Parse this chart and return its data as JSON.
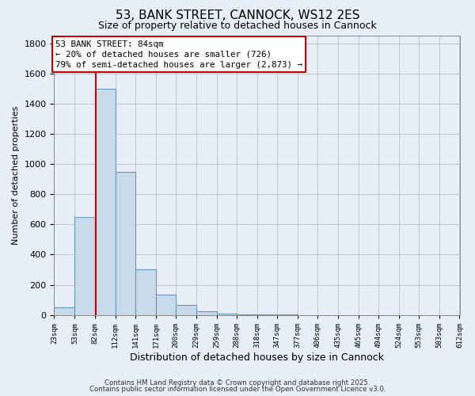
{
  "title": "53, BANK STREET, CANNOCK, WS12 2ES",
  "subtitle": "Size of property relative to detached houses in Cannock",
  "xlabel": "Distribution of detached houses by size in Cannock",
  "ylabel": "Number of detached properties",
  "footer_line1": "Contains HM Land Registry data © Crown copyright and database right 2025.",
  "footer_line2": "Contains public sector information licensed under the Open Government Licence v3.0.",
  "bar_color": "#c9daea",
  "bar_edge_color": "#6699bb",
  "background_color": "#e8eef8",
  "axes_bg_color": "#e8eef8",
  "grid_color": "#bbbbcc",
  "bin_edges": [
    23,
    53,
    82,
    112,
    141,
    171,
    200,
    229,
    259,
    288,
    318,
    347,
    377,
    406,
    435,
    465,
    494,
    524,
    553,
    583,
    612
  ],
  "bar_heights": [
    50,
    650,
    1500,
    950,
    300,
    135,
    65,
    25,
    10,
    4,
    2,
    1,
    0,
    0,
    0,
    0,
    0,
    0,
    0,
    0
  ],
  "property_size": 84,
  "red_line_color": "#cc0000",
  "annotation_title": "53 BANK STREET: 84sqm",
  "annotation_line1": "← 20% of detached houses are smaller (726)",
  "annotation_line2": "79% of semi-detached houses are larger (2,873) →",
  "annotation_box_color": "#ffffff",
  "annotation_box_edge_color": "#cc0000",
  "ylim": [
    0,
    1850
  ],
  "tick_labels": [
    "23sqm",
    "53sqm",
    "82sqm",
    "112sqm",
    "141sqm",
    "171sqm",
    "200sqm",
    "229sqm",
    "259sqm",
    "288sqm",
    "318sqm",
    "347sqm",
    "377sqm",
    "406sqm",
    "435sqm",
    "465sqm",
    "494sqm",
    "524sqm",
    "553sqm",
    "583sqm",
    "612sqm"
  ]
}
